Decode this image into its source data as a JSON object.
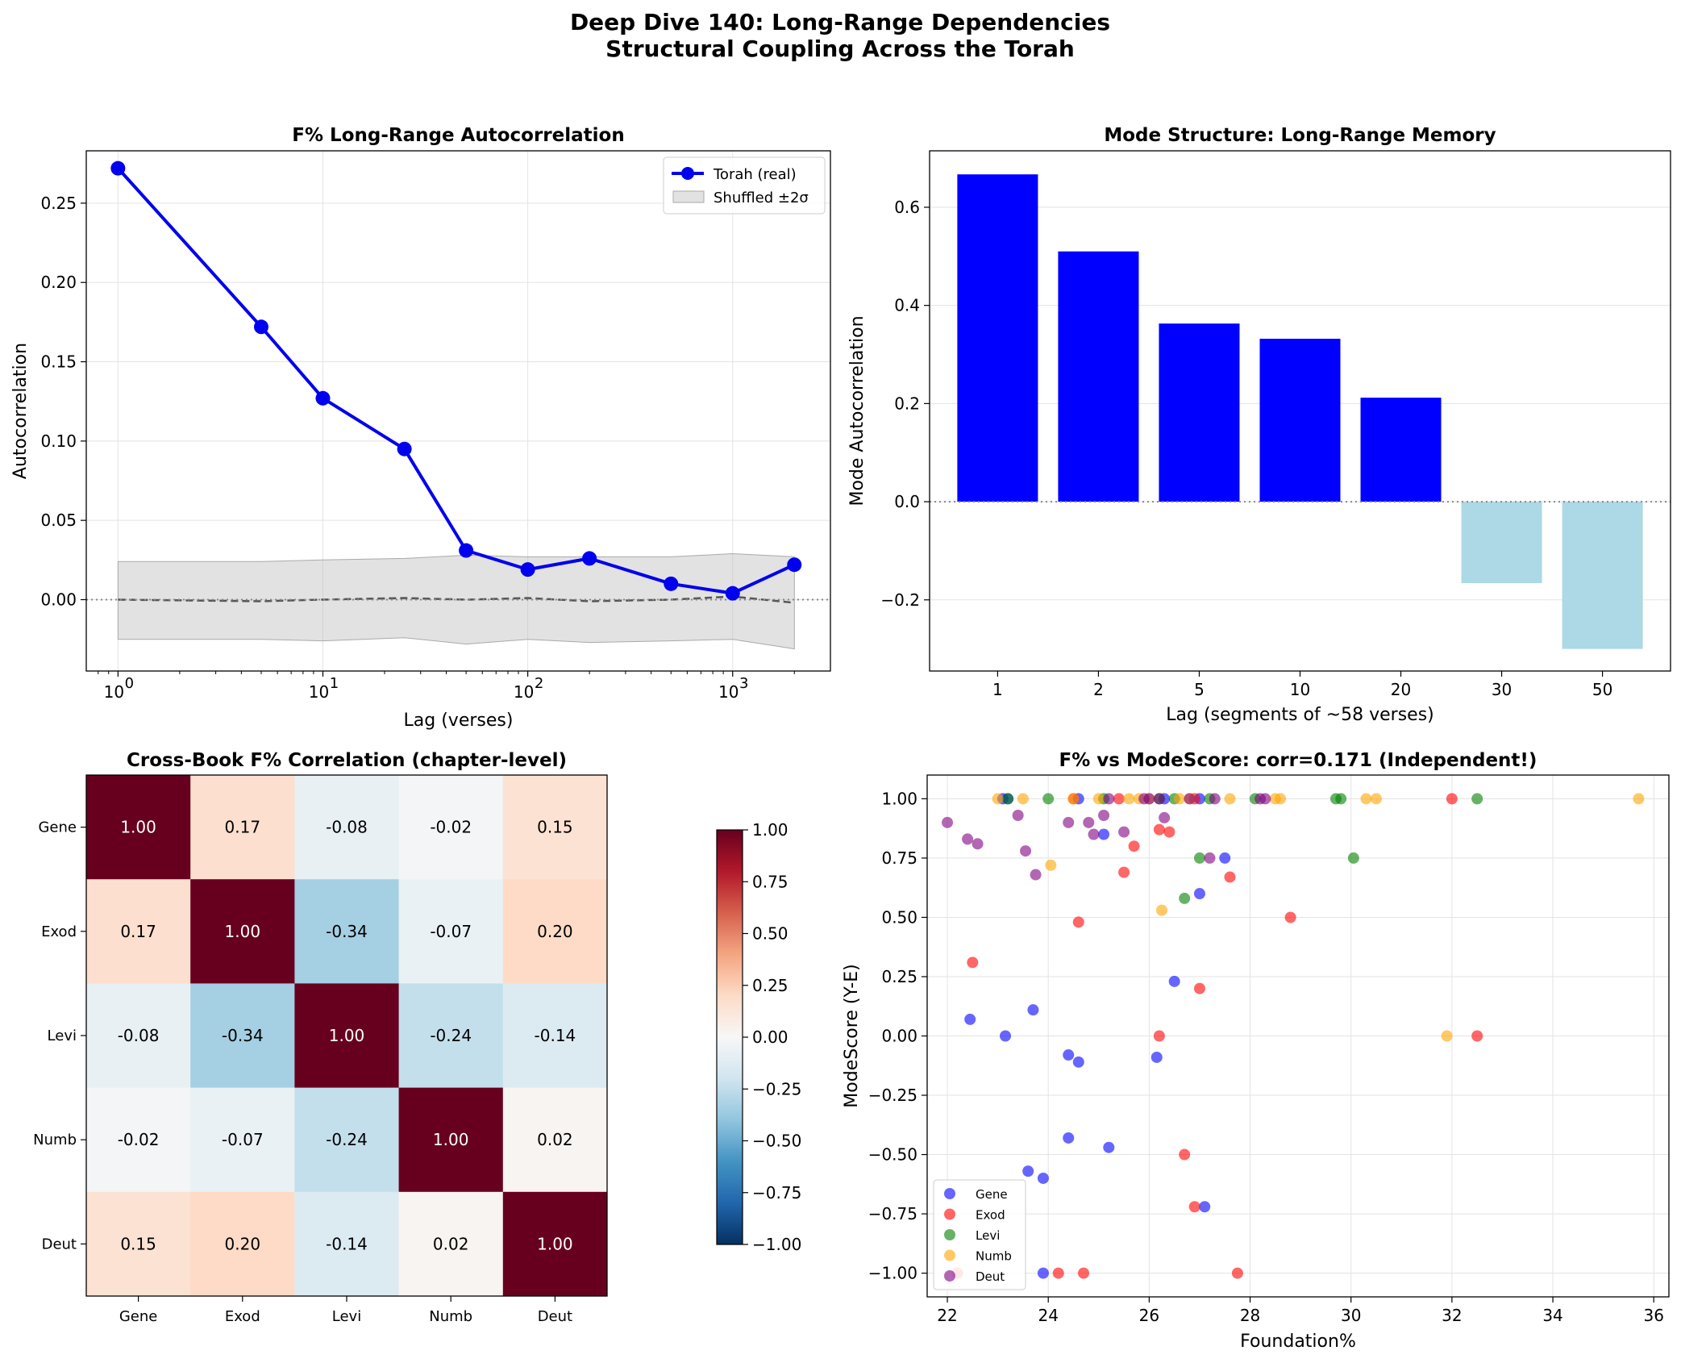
{
  "figure": {
    "title_line1": "Deep Dive 140: Long-Range Dependencies",
    "title_line2": "Structural Coupling Across the Torah"
  },
  "chart_data": [
    {
      "id": "autocorr",
      "type": "line",
      "title": "F% Long-Range Autocorrelation",
      "xlabel": "Lag (verses)",
      "ylabel": "Autocorrelation",
      "xscale": "log",
      "xlim": [
        0.7,
        3000
      ],
      "ylim": [
        -0.045,
        0.283
      ],
      "xticks": [
        {
          "value": 1,
          "exp": "0"
        },
        {
          "value": 10,
          "exp": "1"
        },
        {
          "value": 100,
          "exp": "2"
        },
        {
          "value": 1000,
          "exp": "3"
        }
      ],
      "yticks": [
        0.0,
        0.05,
        0.1,
        0.15,
        0.2,
        0.25
      ],
      "ytick_labels": [
        "0.00",
        "0.05",
        "0.10",
        "0.15",
        "0.20",
        "0.25"
      ],
      "x": [
        1,
        5,
        10,
        25,
        50,
        100,
        200,
        500,
        1000,
        2000
      ],
      "series": [
        {
          "name": "Torah (real)",
          "color": "#0000ee",
          "values": [
            0.272,
            0.172,
            0.127,
            0.095,
            0.031,
            0.019,
            0.026,
            0.01,
            0.004,
            0.022
          ]
        }
      ],
      "shuffled": {
        "name": "Shuffled ±2σ",
        "mean": [
          0.0,
          -0.001,
          0.0,
          0.001,
          0.0,
          0.001,
          -0.001,
          0.0,
          0.002,
          -0.002
        ],
        "upper": [
          0.024,
          0.024,
          0.025,
          0.026,
          0.028,
          0.027,
          0.027,
          0.027,
          0.029,
          0.027
        ],
        "lower": [
          -0.025,
          -0.025,
          -0.026,
          -0.024,
          -0.028,
          -0.025,
          -0.027,
          -0.026,
          -0.025,
          -0.031
        ]
      },
      "legend_position": "upper right",
      "grid": true
    },
    {
      "id": "modes",
      "type": "bar",
      "title": "Mode Structure: Long-Range Memory",
      "xlabel": "Lag (segments of ~58 verses)",
      "ylabel": "Mode Autocorrelation",
      "categories": [
        "1",
        "2",
        "5",
        "10",
        "20",
        "30",
        "50"
      ],
      "values": [
        0.667,
        0.51,
        0.363,
        0.332,
        0.212,
        -0.166,
        -0.3
      ],
      "positive_color": "#0000ff",
      "negative_color": "#add8e6",
      "ylim": [
        -0.345,
        0.715
      ],
      "yticks": [
        -0.2,
        0.0,
        0.2,
        0.4,
        0.6
      ],
      "ytick_labels": [
        "−0.2",
        "0.0",
        "0.2",
        "0.4",
        "0.6"
      ],
      "grid": true
    },
    {
      "id": "heatmap",
      "type": "heatmap",
      "title": "Cross-Book F% Correlation (chapter-level)",
      "labels": [
        "Gene",
        "Exod",
        "Levi",
        "Numb",
        "Deut"
      ],
      "matrix": [
        [
          1.0,
          0.17,
          -0.08,
          -0.02,
          0.15
        ],
        [
          0.17,
          1.0,
          -0.34,
          -0.07,
          0.2
        ],
        [
          -0.08,
          -0.34,
          1.0,
          -0.24,
          -0.14
        ],
        [
          -0.02,
          -0.07,
          -0.24,
          1.0,
          0.02
        ],
        [
          0.15,
          0.2,
          -0.14,
          0.02,
          1.0
        ]
      ],
      "cell_labels": [
        [
          "1.00",
          "0.17",
          "-0.08",
          "-0.02",
          "0.15"
        ],
        [
          "0.17",
          "1.00",
          "-0.34",
          "-0.07",
          "0.20"
        ],
        [
          "-0.08",
          "-0.34",
          "1.00",
          "-0.24",
          "-0.14"
        ],
        [
          "-0.02",
          "-0.07",
          "-0.24",
          "1.00",
          "0.02"
        ],
        [
          "0.15",
          "0.20",
          "-0.14",
          "0.02",
          "1.00"
        ]
      ],
      "colormap": "RdBu_r",
      "vmin": -1.0,
      "vmax": 1.0,
      "colorbar_ticks": [
        1.0,
        0.75,
        0.5,
        0.25,
        0.0,
        -0.25,
        -0.5,
        -0.75,
        -1.0
      ],
      "colorbar_tick_labels": [
        "1.00",
        "0.75",
        "0.50",
        "0.25",
        "0.00",
        "−0.25",
        "−0.50",
        "−0.75",
        "−1.00"
      ]
    },
    {
      "id": "scatter",
      "type": "scatter",
      "title": "F% vs ModeScore: corr=0.171 (Independent!)",
      "xlabel": "Foundation%",
      "ylabel": "ModeScore (Y-E)",
      "xlim": [
        21.6,
        36.3
      ],
      "ylim": [
        -1.1,
        1.1
      ],
      "xticks": [
        22,
        24,
        26,
        28,
        30,
        32,
        34,
        36
      ],
      "yticks": [
        -1.0,
        -0.75,
        -0.5,
        -0.25,
        0.0,
        0.25,
        0.5,
        0.75,
        1.0
      ],
      "ytick_labels": [
        "−1.00",
        "−0.75",
        "−0.50",
        "−0.25",
        "0.00",
        "0.25",
        "0.50",
        "0.75",
        "1.00"
      ],
      "legend_position": "lower left",
      "grid": true,
      "series": [
        {
          "name": "Gene",
          "color": "#0000ff",
          "points": [
            [
              23.1,
              1.0
            ],
            [
              23.2,
              1.0
            ],
            [
              24.6,
              1.0
            ],
            [
              25.1,
              0.85
            ],
            [
              26.3,
              1.0
            ],
            [
              27.0,
              1.0
            ],
            [
              27.5,
              0.75
            ],
            [
              27.0,
              0.6
            ],
            [
              26.5,
              0.23
            ],
            [
              23.7,
              0.11
            ],
            [
              22.45,
              0.07
            ],
            [
              23.15,
              0.0
            ],
            [
              24.4,
              -0.08
            ],
            [
              24.6,
              -0.11
            ],
            [
              26.15,
              -0.09
            ],
            [
              24.4,
              -0.43
            ],
            [
              25.2,
              -0.47
            ],
            [
              23.6,
              -0.57
            ],
            [
              23.9,
              -0.6
            ],
            [
              27.1,
              -0.72
            ],
            [
              23.9,
              -1.0
            ]
          ]
        },
        {
          "name": "Exod",
          "color": "#ff0000",
          "points": [
            [
              24.5,
              1.0
            ],
            [
              25.4,
              1.0
            ],
            [
              26.9,
              1.0
            ],
            [
              32.0,
              1.0
            ],
            [
              26.2,
              0.87
            ],
            [
              26.4,
              0.86
            ],
            [
              25.7,
              0.8
            ],
            [
              25.5,
              0.69
            ],
            [
              27.6,
              0.67
            ],
            [
              24.6,
              0.48
            ],
            [
              28.8,
              0.5
            ],
            [
              22.5,
              0.31
            ],
            [
              27.0,
              0.2
            ],
            [
              26.2,
              0.0
            ],
            [
              32.5,
              0.0
            ],
            [
              26.7,
              -0.5
            ],
            [
              26.9,
              -0.72
            ],
            [
              22.2,
              -1.0
            ],
            [
              24.2,
              -1.0
            ],
            [
              24.7,
              -1.0
            ],
            [
              27.75,
              -1.0
            ]
          ]
        },
        {
          "name": "Levi",
          "color": "#008000",
          "points": [
            [
              23.2,
              1.0
            ],
            [
              24.0,
              1.0
            ],
            [
              25.1,
              1.0
            ],
            [
              26.5,
              1.0
            ],
            [
              27.2,
              1.0
            ],
            [
              28.1,
              1.0
            ],
            [
              29.7,
              1.0
            ],
            [
              29.8,
              1.0
            ],
            [
              32.5,
              1.0
            ],
            [
              26.2,
              1.0
            ],
            [
              27.0,
              0.75
            ],
            [
              30.05,
              0.75
            ],
            [
              26.7,
              0.58
            ]
          ]
        },
        {
          "name": "Numb",
          "color": "#ffa500",
          "points": [
            [
              23.0,
              1.0
            ],
            [
              23.5,
              1.0
            ],
            [
              24.5,
              1.0
            ],
            [
              25.0,
              1.0
            ],
            [
              25.6,
              1.0
            ],
            [
              25.8,
              1.0
            ],
            [
              26.0,
              1.0
            ],
            [
              26.6,
              1.0
            ],
            [
              26.8,
              1.0
            ],
            [
              27.6,
              1.0
            ],
            [
              28.5,
              1.0
            ],
            [
              28.6,
              1.0
            ],
            [
              30.3,
              1.0
            ],
            [
              30.5,
              1.0
            ],
            [
              35.7,
              1.0
            ],
            [
              24.05,
              0.72
            ],
            [
              26.25,
              0.53
            ],
            [
              31.9,
              0.0
            ]
          ]
        },
        {
          "name": "Deut",
          "color": "#800080",
          "points": [
            [
              22.0,
              0.9
            ],
            [
              22.4,
              0.83
            ],
            [
              22.6,
              0.81
            ],
            [
              23.4,
              0.93
            ],
            [
              23.55,
              0.78
            ],
            [
              23.75,
              0.68
            ],
            [
              24.4,
              0.9
            ],
            [
              24.8,
              0.9
            ],
            [
              24.9,
              0.85
            ],
            [
              25.1,
              0.93
            ],
            [
              25.5,
              0.86
            ],
            [
              26.3,
              0.92
            ],
            [
              27.2,
              0.75
            ],
            [
              25.2,
              1.0
            ],
            [
              25.9,
              1.0
            ],
            [
              26.2,
              1.0
            ],
            [
              26.8,
              1.0
            ],
            [
              27.3,
              1.0
            ],
            [
              28.2,
              1.0
            ],
            [
              28.3,
              1.0
            ],
            [
              26.0,
              1.0
            ]
          ]
        }
      ]
    }
  ]
}
